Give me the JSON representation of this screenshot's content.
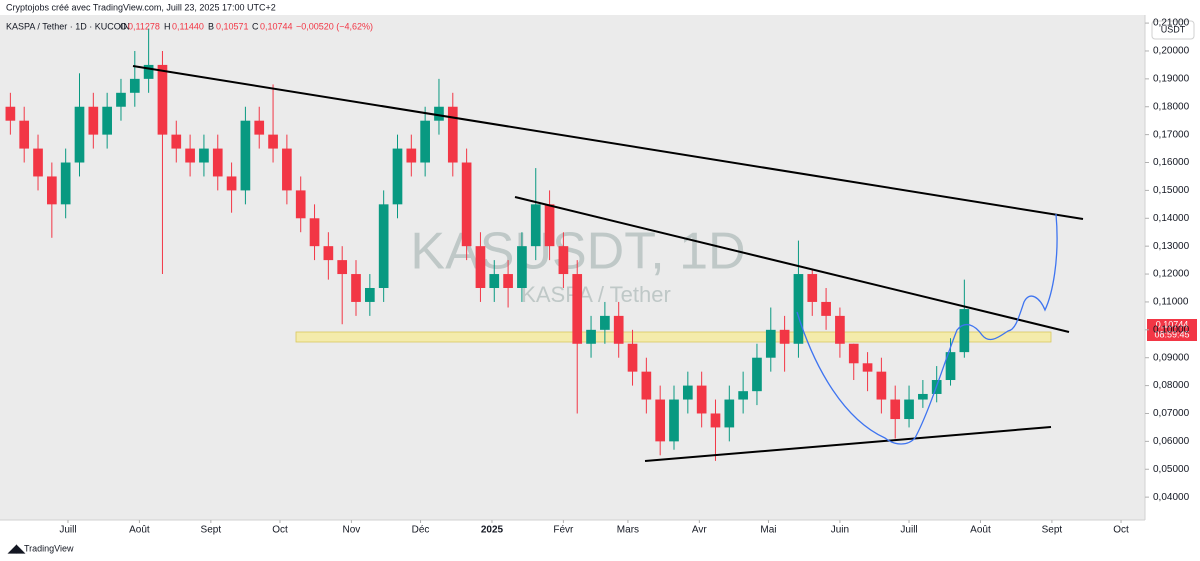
{
  "header": {
    "credit": "Cryptojobs créé avec TradingView.com, Juill 23, 2025 17:00 UTC+2",
    "symbol": "KASPA / Tether · 1D · KUCOIN",
    "ohlc": [
      {
        "key": "O",
        "text": "0,11278"
      },
      {
        "key": "H",
        "text": "0,11440"
      },
      {
        "key": "B",
        "text": "0,10571"
      },
      {
        "key": "C",
        "text": "0,10744"
      }
    ],
    "change": "−0,00520 (−4,62%)",
    "currency_button": "USDT"
  },
  "watermark": {
    "ticker": "KASUSDT, 1D",
    "name": "KASPA / Tether"
  },
  "price_tag": {
    "price": "0,10744",
    "countdown": "08:59:45"
  },
  "footer": {
    "brand": "TradingView"
  },
  "chart_data": {
    "type": "candlestick",
    "up_color": "#089981",
    "down_color": "#f23645",
    "x": [
      0,
      6,
      12,
      18,
      24,
      30,
      36,
      42,
      48,
      54,
      60,
      66,
      72,
      78,
      84,
      90,
      96,
      102,
      108,
      114,
      120,
      126,
      132,
      138,
      144,
      150,
      156,
      162,
      168,
      174,
      180,
      186,
      192,
      198,
      204,
      210,
      216,
      222,
      228,
      234,
      240,
      246,
      252,
      258,
      264,
      270,
      276,
      282,
      288,
      294,
      300,
      306,
      312,
      318,
      324,
      330,
      336,
      342,
      348,
      354,
      360,
      366,
      372,
      378,
      384,
      390,
      396,
      402,
      408,
      414
    ],
    "open": [
      0.18,
      0.175,
      0.165,
      0.155,
      0.145,
      0.16,
      0.18,
      0.17,
      0.18,
      0.185,
      0.19,
      0.195,
      0.17,
      0.165,
      0.16,
      0.165,
      0.155,
      0.15,
      0.175,
      0.17,
      0.165,
      0.15,
      0.14,
      0.13,
      0.125,
      0.12,
      0.11,
      0.115,
      0.145,
      0.165,
      0.16,
      0.175,
      0.18,
      0.16,
      0.13,
      0.115,
      0.12,
      0.115,
      0.13,
      0.145,
      0.13,
      0.12,
      0.095,
      0.1,
      0.105,
      0.095,
      0.085,
      0.075,
      0.06,
      0.075,
      0.08,
      0.07,
      0.065,
      0.075,
      0.078,
      0.09,
      0.1,
      0.095,
      0.12,
      0.11,
      0.105,
      0.095,
      0.088,
      0.085,
      0.075,
      0.068,
      0.075,
      0.077,
      0.082,
      0.092
    ],
    "high": [
      0.185,
      0.18,
      0.17,
      0.16,
      0.165,
      0.192,
      0.185,
      0.185,
      0.19,
      0.2,
      0.208,
      0.2,
      0.175,
      0.17,
      0.17,
      0.17,
      0.16,
      0.18,
      0.18,
      0.188,
      0.17,
      0.155,
      0.145,
      0.135,
      0.13,
      0.125,
      0.12,
      0.15,
      0.17,
      0.17,
      0.18,
      0.19,
      0.185,
      0.165,
      0.135,
      0.125,
      0.125,
      0.135,
      0.158,
      0.15,
      0.135,
      0.125,
      0.105,
      0.11,
      0.11,
      0.1,
      0.09,
      0.08,
      0.08,
      0.085,
      0.085,
      0.075,
      0.08,
      0.085,
      0.095,
      0.108,
      0.105,
      0.132,
      0.122,
      0.115,
      0.108,
      0.095,
      0.092,
      0.09,
      0.08,
      0.08,
      0.082,
      0.087,
      0.097,
      0.118
    ],
    "low": [
      0.17,
      0.16,
      0.15,
      0.133,
      0.14,
      0.155,
      0.165,
      0.165,
      0.175,
      0.18,
      0.185,
      0.12,
      0.16,
      0.155,
      0.155,
      0.15,
      0.142,
      0.145,
      0.165,
      0.16,
      0.145,
      0.135,
      0.125,
      0.118,
      0.102,
      0.105,
      0.105,
      0.11,
      0.14,
      0.155,
      0.155,
      0.17,
      0.155,
      0.125,
      0.11,
      0.11,
      0.108,
      0.11,
      0.125,
      0.125,
      0.115,
      0.07,
      0.09,
      0.095,
      0.09,
      0.08,
      0.07,
      0.055,
      0.057,
      0.07,
      0.065,
      0.053,
      0.06,
      0.07,
      0.073,
      0.085,
      0.085,
      0.09,
      0.105,
      0.1,
      0.09,
      0.082,
      0.078,
      0.07,
      0.061,
      0.065,
      0.072,
      0.074,
      0.08,
      0.09
    ],
    "close": [
      0.175,
      0.165,
      0.155,
      0.145,
      0.16,
      0.18,
      0.17,
      0.18,
      0.185,
      0.19,
      0.195,
      0.17,
      0.165,
      0.16,
      0.165,
      0.155,
      0.15,
      0.175,
      0.17,
      0.165,
      0.15,
      0.14,
      0.13,
      0.125,
      0.12,
      0.11,
      0.115,
      0.145,
      0.165,
      0.16,
      0.175,
      0.18,
      0.16,
      0.13,
      0.115,
      0.12,
      0.115,
      0.13,
      0.145,
      0.13,
      0.12,
      0.095,
      0.1,
      0.105,
      0.095,
      0.085,
      0.075,
      0.06,
      0.075,
      0.08,
      0.07,
      0.065,
      0.075,
      0.078,
      0.09,
      0.1,
      0.095,
      0.12,
      0.11,
      0.105,
      0.095,
      0.088,
      0.085,
      0.075,
      0.068,
      0.075,
      0.077,
      0.082,
      0.092,
      0.10744
    ],
    "xlim": [
      -1.5,
      495.4
    ],
    "xticks": [
      {
        "value": 28,
        "label": "Juill"
      },
      {
        "value": 59,
        "label": "Août"
      },
      {
        "value": 90,
        "label": "Sept"
      },
      {
        "value": 120,
        "label": "Oct"
      },
      {
        "value": 151,
        "label": "Nov"
      },
      {
        "value": 181,
        "label": "Déc"
      },
      {
        "value": 212,
        "label": "2025"
      },
      {
        "value": 243,
        "label": "Févr"
      },
      {
        "value": 271,
        "label": "Mars"
      },
      {
        "value": 302,
        "label": "Avr"
      },
      {
        "value": 332,
        "label": "Mai"
      },
      {
        "value": 363,
        "label": "Juin"
      },
      {
        "value": 393,
        "label": "Juill"
      },
      {
        "value": 424,
        "label": "Août"
      },
      {
        "value": 455,
        "label": "Sept"
      },
      {
        "value": 485,
        "label": "Oct"
      }
    ],
    "ylim": [
      0.0318,
      0.2129
    ],
    "yticks": [
      {
        "value": 0.04,
        "label": "0,04000"
      },
      {
        "value": 0.05,
        "label": "0,05000"
      },
      {
        "value": 0.06,
        "label": "0,06000"
      },
      {
        "value": 0.07,
        "label": "0,07000"
      },
      {
        "value": 0.08,
        "label": "0,08000"
      },
      {
        "value": 0.09,
        "label": "0,09000"
      },
      {
        "value": 0.1,
        "label": "0,10000"
      },
      {
        "value": 0.11,
        "label": "0,11000"
      },
      {
        "value": 0.12,
        "label": "0,12000"
      },
      {
        "value": 0.13,
        "label": "0,13000"
      },
      {
        "value": 0.14,
        "label": "0,14000"
      },
      {
        "value": 0.15,
        "label": "0,15000"
      },
      {
        "value": 0.16,
        "label": "0,16000"
      },
      {
        "value": 0.17,
        "label": "0,17000"
      },
      {
        "value": 0.18,
        "label": "0,18000"
      },
      {
        "value": 0.19,
        "label": "0,19000"
      },
      {
        "value": 0.2,
        "label": "0,20000"
      },
      {
        "value": 0.21,
        "label": "0,21000"
      }
    ],
    "grid": false
  }
}
